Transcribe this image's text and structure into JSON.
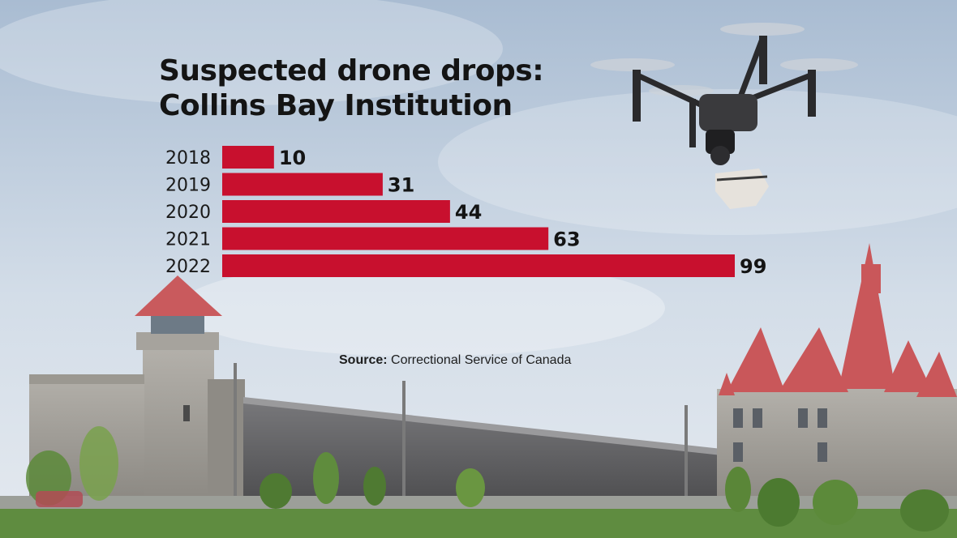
{
  "chart_data": {
    "type": "bar",
    "orientation": "horizontal",
    "title_line1": "Suspected drone drops:",
    "title_line2": "Collins Bay Institution",
    "categories": [
      "2018",
      "2019",
      "2020",
      "2021",
      "2022"
    ],
    "values": [
      10,
      31,
      44,
      63,
      99
    ],
    "bar_color": "#c8102e",
    "grid": false,
    "xlim": [
      0,
      99
    ]
  },
  "source": {
    "label": "Source:",
    "text": " Correctional Service of Canada"
  },
  "colors": {
    "sky_top": "#9fb4cc",
    "sky_bottom": "#dfe6ee",
    "roof": "#c9575a",
    "grass": "#5d8a3e",
    "stone": "#8c8a86"
  }
}
